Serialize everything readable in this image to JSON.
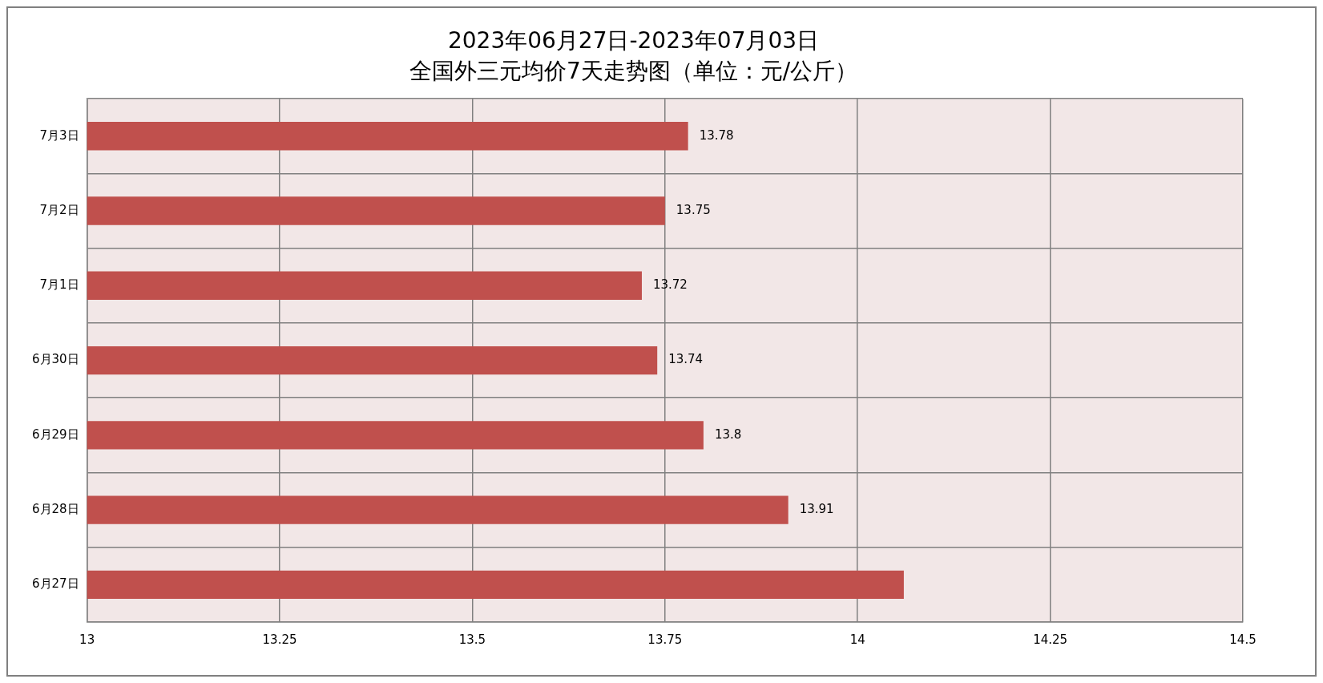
{
  "chart_data": {
    "type": "bar",
    "orientation": "horizontal",
    "title": "2023年06月27日-2023年07月03日",
    "subtitle": "全国外三元均价7天走势图（单位：元/公斤）",
    "categories": [
      "7月3日",
      "7月2日",
      "7月1日",
      "6月30日",
      "6月29日",
      "6月28日",
      "6月27日"
    ],
    "values": [
      13.78,
      13.75,
      13.72,
      13.74,
      13.8,
      13.91,
      14.06
    ],
    "value_labels": [
      "13.78",
      "13.75",
      "13.72",
      "13.74",
      "13.8",
      "13.91",
      null
    ],
    "color": "#c0504d",
    "xlim": [
      13,
      14.5
    ],
    "xticks": [
      13,
      13.25,
      13.5,
      13.75,
      14,
      14.25,
      14.5
    ],
    "grid": true,
    "legend": false
  }
}
